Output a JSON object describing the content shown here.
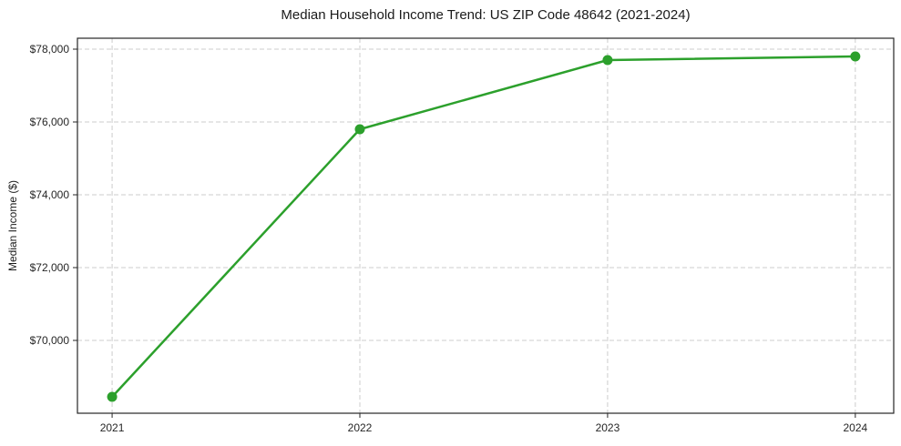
{
  "chart_data": {
    "type": "line",
    "title": "Median Household Income Trend: US ZIP Code 48642 (2021-2024)",
    "xlabel": "",
    "ylabel": "Median Income ($)",
    "x": [
      2021,
      2022,
      2023,
      2024
    ],
    "series": [
      {
        "name": "median-household-income",
        "values": [
          68450,
          75800,
          77700,
          77800
        ],
        "color": "#2ca02c",
        "marker": "circle",
        "marker_radius": 5.5,
        "line_width": 2.5
      }
    ],
    "x_ticks": [
      {
        "value": 2021,
        "label": "2021"
      },
      {
        "value": 2022,
        "label": "2022"
      },
      {
        "value": 2023,
        "label": "2023"
      },
      {
        "value": 2024,
        "label": "2024"
      }
    ],
    "y_ticks": [
      {
        "value": 70000,
        "label": "$70,000"
      },
      {
        "value": 72000,
        "label": "$72,000"
      },
      {
        "value": 74000,
        "label": "$74,000"
      },
      {
        "value": 76000,
        "label": "$76,000"
      },
      {
        "value": 78000,
        "label": "$78,000"
      }
    ],
    "xlim": [
      2020.86,
      2024.155
    ],
    "ylim": [
      68000,
      78300
    ],
    "grid": "dashed",
    "grid_color": "#cccccc",
    "spine_color": "#262626",
    "tick_color": "#262626",
    "text_color": "#262626",
    "background": "#ffffff",
    "legend": "none"
  }
}
